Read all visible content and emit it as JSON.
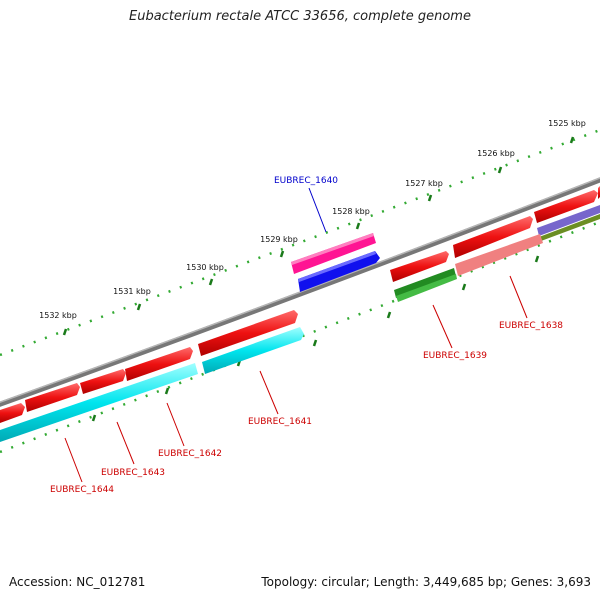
{
  "title": "Eubacterium rectale ATCC 33656, complete genome",
  "footer": {
    "accession": "Accession: NC_012781",
    "info": "Topology: circular; Length: 3,449,685 bp; Genes: 3,693"
  },
  "ruler_labels": [
    "1525 kbp",
    "1526 kbp",
    "1527 kbp",
    "1528 kbp",
    "1529 kbp",
    "1530 kbp",
    "1531 kbp",
    "1532 kbp"
  ],
  "gene_labels": [
    {
      "text": "EUBREC_1640",
      "color": "#0000cc"
    },
    {
      "text": "EUBREC_1638",
      "color": "#cc0000"
    },
    {
      "text": "EUBREC_1639",
      "color": "#cc0000"
    },
    {
      "text": "EUBREC_1641",
      "color": "#cc0000"
    },
    {
      "text": "EUBREC_1642",
      "color": "#cc0000"
    },
    {
      "text": "EUBREC_1643",
      "color": "#cc0000"
    },
    {
      "text": "EUBREC_1644",
      "color": "#cc0000"
    }
  ],
  "colors": {
    "cds": "#ee1111",
    "gene": "#00e5ee",
    "backbone": "#888888",
    "tick_dark": "#1a7a1a",
    "tick_light": "#33aa33",
    "highlight_magenta": "#ff1493",
    "highlight_blue": "#1010ee",
    "rna_green": "#33aa33",
    "pink": "#f08080",
    "purple": "#7766cc",
    "olive": "#6b8e23"
  }
}
